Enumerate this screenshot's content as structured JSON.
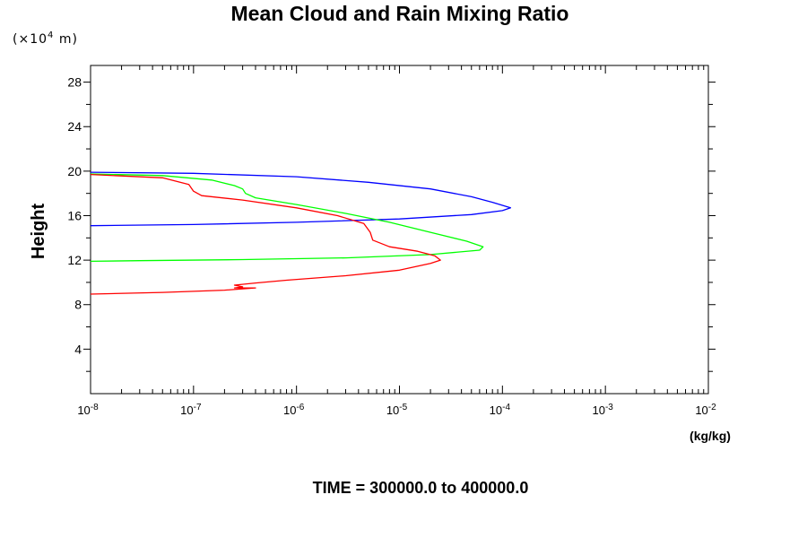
{
  "chart_data": {
    "type": "line",
    "title": "Mean Cloud and Rain Mixing Ratio",
    "ylabel": "Height",
    "y_unit": "(×10",
    "y_unit_exp": "4",
    "y_unit_suffix": " m)",
    "xlabel": "(kg/kg)",
    "footer": "TIME = 300000.0 to 400000.0",
    "xscale": "log",
    "xlim": [
      1e-08,
      0.01
    ],
    "ylim": [
      0,
      29.5
    ],
    "x_ticks": [
      {
        "base": "10",
        "exp": "-8"
      },
      {
        "base": "10",
        "exp": "-7"
      },
      {
        "base": "10",
        "exp": "-6"
      },
      {
        "base": "10",
        "exp": "-5"
      },
      {
        "base": "10",
        "exp": "-4"
      },
      {
        "base": "10",
        "exp": "-3"
      },
      {
        "base": "10",
        "exp": "-2"
      }
    ],
    "y_ticks": [
      "4",
      "8",
      "12",
      "16",
      "20",
      "24",
      "28"
    ],
    "grid": false,
    "series": [
      {
        "color": "#0000ff",
        "points": [
          [
            1e-08,
            19.9
          ],
          [
            1e-07,
            19.8
          ],
          [
            1e-06,
            19.5
          ],
          [
            5e-06,
            19.0
          ],
          [
            2e-05,
            18.4
          ],
          [
            5e-05,
            17.7
          ],
          [
            8e-05,
            17.2
          ],
          [
            0.00012,
            16.7
          ],
          [
            0.0001,
            16.45
          ],
          [
            5e-05,
            16.1
          ],
          [
            1e-05,
            15.7
          ],
          [
            1e-06,
            15.4
          ],
          [
            1e-07,
            15.2
          ],
          [
            1e-08,
            15.1
          ]
        ]
      },
      {
        "color": "#00ff00",
        "points": [
          [
            1e-08,
            19.75
          ],
          [
            5e-08,
            19.6
          ],
          [
            1.5e-07,
            19.2
          ],
          [
            2.5e-07,
            18.7
          ],
          [
            3e-07,
            18.4
          ],
          [
            3.2e-07,
            18.0
          ],
          [
            4e-07,
            17.6
          ],
          [
            1e-06,
            17.0
          ],
          [
            3e-06,
            16.2
          ],
          [
            8e-06,
            15.4
          ],
          [
            2e-05,
            14.5
          ],
          [
            4.5e-05,
            13.7
          ],
          [
            6.5e-05,
            13.2
          ],
          [
            6e-05,
            12.9
          ],
          [
            2e-05,
            12.5
          ],
          [
            3e-06,
            12.2
          ],
          [
            3e-07,
            12.05
          ],
          [
            3e-08,
            11.95
          ],
          [
            1e-08,
            11.9
          ]
        ]
      },
      {
        "color": "#ff0000",
        "points": [
          [
            1e-08,
            19.7
          ],
          [
            5e-08,
            19.4
          ],
          [
            9e-08,
            18.8
          ],
          [
            1e-07,
            18.2
          ],
          [
            1.2e-07,
            17.8
          ],
          [
            3e-07,
            17.4
          ],
          [
            1e-06,
            16.7
          ],
          [
            2.5e-06,
            16.0
          ],
          [
            4.5e-06,
            15.3
          ],
          [
            5.2e-06,
            14.5
          ],
          [
            5.5e-06,
            13.8
          ],
          [
            8e-06,
            13.2
          ],
          [
            1.5e-05,
            12.8
          ],
          [
            2.2e-05,
            12.4
          ],
          [
            2.5e-05,
            12.0
          ],
          [
            2e-05,
            11.7
          ],
          [
            1e-05,
            11.1
          ],
          [
            3e-06,
            10.6
          ],
          [
            8e-07,
            10.2
          ],
          [
            4e-07,
            9.95
          ],
          [
            2.5e-07,
            9.75
          ],
          [
            3e-07,
            9.6
          ],
          [
            2.5e-07,
            9.5
          ],
          [
            4e-07,
            9.5
          ],
          [
            2e-07,
            9.3
          ],
          [
            5e-08,
            9.1
          ],
          [
            1e-08,
            8.95
          ]
        ]
      }
    ]
  }
}
